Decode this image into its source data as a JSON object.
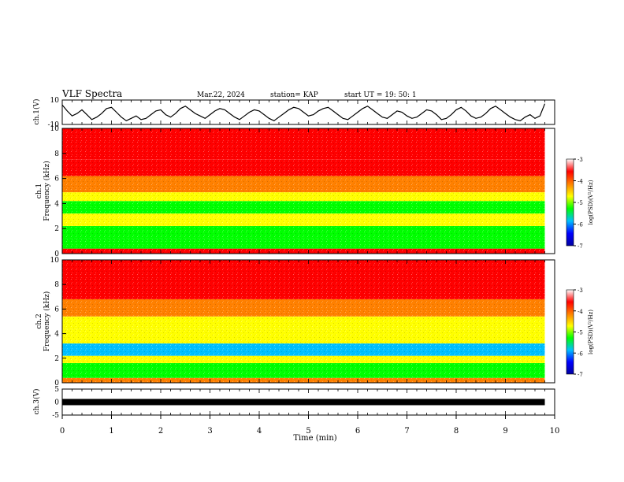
{
  "header": {
    "title": "VLF Spectra",
    "date": "Mar.22, 2024",
    "station": "station= KAP",
    "start": "start  UT  =   19: 50: 1"
  },
  "chart_data": [
    {
      "type": "line",
      "panel": "ch1-waveform",
      "ylabel": "ch.1(V)",
      "ylim": [
        -10,
        10
      ],
      "yticks": [
        "10",
        "-10"
      ],
      "xlim": [
        0,
        10
      ],
      "series": [
        {
          "x": [
            0,
            0.1,
            0.2,
            0.3,
            0.4,
            0.5,
            0.6,
            0.7,
            0.8,
            0.9,
            1.0,
            1.1,
            1.2,
            1.3,
            1.4,
            1.5,
            1.6,
            1.7,
            1.8,
            1.9,
            2.0,
            2.1,
            2.2,
            2.3,
            2.4,
            2.5,
            2.6,
            2.7,
            2.8,
            2.9,
            3.0,
            3.1,
            3.2,
            3.3,
            3.4,
            3.5,
            3.6,
            3.7,
            3.8,
            3.9,
            4.0,
            4.1,
            4.2,
            4.3,
            4.4,
            4.5,
            4.6,
            4.7,
            4.8,
            4.9,
            5.0,
            5.1,
            5.2,
            5.3,
            5.4,
            5.5,
            5.6,
            5.7,
            5.8,
            5.9,
            6.0,
            6.1,
            6.2,
            6.3,
            6.4,
            6.5,
            6.6,
            6.7,
            6.8,
            6.9,
            7.0,
            7.1,
            7.2,
            7.3,
            7.4,
            7.5,
            7.6,
            7.7,
            7.8,
            7.9,
            8.0,
            8.1,
            8.2,
            8.3,
            8.4,
            8.5,
            8.6,
            8.7,
            8.8,
            8.9,
            9.0,
            9.1,
            9.2,
            9.3,
            9.4,
            9.5,
            9.6,
            9.7,
            9.8
          ],
          "y": [
            6,
            1,
            -3,
            -1,
            2,
            -2,
            -6,
            -4,
            -1,
            3,
            4,
            0,
            -4,
            -7,
            -5,
            -3,
            -6,
            -5,
            -2,
            1,
            2,
            -2,
            -4,
            -1,
            3,
            5,
            2,
            -1,
            -3,
            -5,
            -2,
            1,
            3,
            2,
            -1,
            -4,
            -6,
            -3,
            0,
            2,
            1,
            -2,
            -5,
            -7,
            -4,
            -1,
            2,
            4,
            3,
            0,
            -3,
            -2,
            1,
            3,
            4,
            1,
            -2,
            -5,
            -6,
            -3,
            0,
            3,
            5,
            2,
            -1,
            -4,
            -5,
            -2,
            1,
            0,
            -3,
            -5,
            -4,
            -1,
            2,
            1,
            -2,
            -6,
            -5,
            -2,
            2,
            4,
            1,
            -3,
            -5,
            -4,
            -1,
            3,
            5,
            2,
            -1,
            -4,
            -6,
            -7,
            -4,
            -2,
            -5,
            -3,
            7
          ]
        }
      ]
    },
    {
      "type": "heatmap",
      "panel": "ch1-spectrogram",
      "ylabel": "ch.1\nFrequency  (kHz)",
      "yticks": [
        "10",
        "8",
        "6",
        "4",
        "2",
        "0"
      ],
      "ylim": [
        0,
        10
      ],
      "xlim": [
        0,
        9.8
      ],
      "colorbar": {
        "label": "log(PSD)(V²/Hz)",
        "ticks": [
          "-3",
          "-4",
          "-5",
          "-6",
          "-7"
        ],
        "range": [
          -7,
          -3
        ],
        "colors": [
          "#0000a0",
          "#0000ff",
          "#00c0ff",
          "#00ff00",
          "#ffff00",
          "#ff8000",
          "#ff0000",
          "#ffffff"
        ]
      },
      "bands": [
        {
          "f_low": 0,
          "f_high": 0.4,
          "log_psd": -3.8
        },
        {
          "f_low": 0.4,
          "f_high": 1.2,
          "log_psd": -5.1
        },
        {
          "f_low": 1.2,
          "f_high": 2.2,
          "log_psd": -5.3
        },
        {
          "f_low": 2.2,
          "f_high": 3.2,
          "log_psd": -5.0
        },
        {
          "f_low": 3.2,
          "f_high": 4.2,
          "log_psd": -5.2
        },
        {
          "f_low": 4.2,
          "f_high": 4.9,
          "log_psd": -4.7
        },
        {
          "f_low": 4.9,
          "f_high": 6.2,
          "log_psd": -4.2
        },
        {
          "f_low": 6.2,
          "f_high": 7.5,
          "log_psd": -3.7
        },
        {
          "f_low": 7.5,
          "f_high": 10,
          "log_psd": -3.3
        }
      ]
    },
    {
      "type": "heatmap",
      "panel": "ch2-spectrogram",
      "ylabel": "ch.2\nFrequency  (kHz)",
      "yticks": [
        "10",
        "8",
        "6",
        "4",
        "2",
        "0"
      ],
      "ylim": [
        0,
        10
      ],
      "xlim": [
        0,
        9.8
      ],
      "colorbar": {
        "label": "log(PSD)(V²/Hz)",
        "ticks": [
          "-3",
          "-4",
          "-5",
          "-6",
          "-7"
        ],
        "range": [
          -7,
          -3
        ],
        "colors": [
          "#0000a0",
          "#0000ff",
          "#00c0ff",
          "#00ff00",
          "#ffff00",
          "#ff8000",
          "#ff0000",
          "#ffffff"
        ]
      },
      "bands": [
        {
          "f_low": 0,
          "f_high": 0.4,
          "log_psd": -4.2
        },
        {
          "f_low": 0.4,
          "f_high": 1.6,
          "log_psd": -5.4
        },
        {
          "f_low": 1.6,
          "f_high": 2.2,
          "log_psd": -5.0
        },
        {
          "f_low": 2.2,
          "f_high": 3.2,
          "log_psd": -5.6
        },
        {
          "f_low": 3.2,
          "f_high": 4.4,
          "log_psd": -5.0
        },
        {
          "f_low": 4.4,
          "f_high": 5.4,
          "log_psd": -4.7
        },
        {
          "f_low": 5.4,
          "f_high": 6.8,
          "log_psd": -4.0
        },
        {
          "f_low": 6.8,
          "f_high": 10,
          "log_psd": -3.4
        }
      ]
    },
    {
      "type": "line",
      "panel": "ch3-waveform",
      "ylabel": "ch.3(V)",
      "ylim": [
        -5,
        5
      ],
      "yticks": [
        "5",
        "0",
        "-5"
      ],
      "xlim": [
        0,
        10
      ],
      "series": [
        {
          "x": [
            0,
            9.8
          ],
          "y_min": -0.6,
          "y_max": 0.6
        }
      ],
      "xlabel": "Time  (min)",
      "xticks": [
        "0",
        "1",
        "2",
        "3",
        "4",
        "5",
        "6",
        "7",
        "8",
        "9",
        "10"
      ]
    }
  ]
}
